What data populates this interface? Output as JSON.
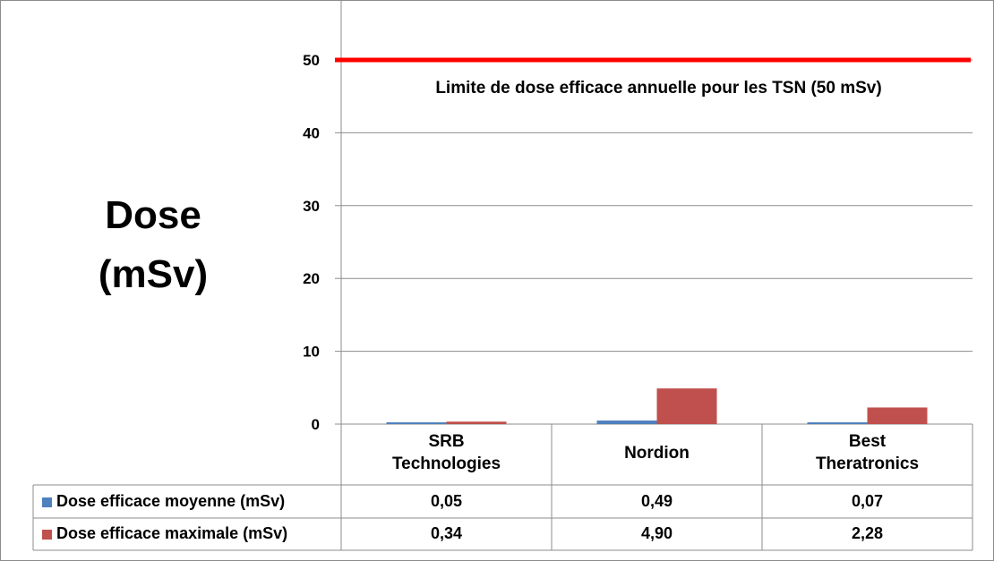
{
  "chart_data": {
    "type": "bar",
    "ylabel_line1": "Dose",
    "ylabel_line2": "(mSv)",
    "yticks": [
      0,
      10,
      20,
      30,
      40,
      50
    ],
    "ylim": [
      0,
      55
    ],
    "grid": true,
    "legend_placement": "data-table-left",
    "categories": [
      {
        "line1": "SRB",
        "line2": "Technologies"
      },
      {
        "line1": "Nordion",
        "line2": ""
      },
      {
        "line1": "Best",
        "line2": "Theratronics"
      }
    ],
    "series": [
      {
        "name": "Dose efficace moyenne (mSv)",
        "color": "#4f81bd",
        "values": [
          0.05,
          0.49,
          0.07
        ],
        "labels": [
          "0,05",
          "0,49",
          "0,07"
        ]
      },
      {
        "name": "Dose efficace maximale (mSv)",
        "color": "#c0504d",
        "values": [
          0.34,
          4.9,
          2.28
        ],
        "labels": [
          "0,34",
          "4,90",
          "2,28"
        ]
      }
    ],
    "reference_line": {
      "value": 50,
      "color": "#ff0000",
      "label": "Limite de dose efficace annuelle pour les TSN (50 mSv)"
    }
  }
}
